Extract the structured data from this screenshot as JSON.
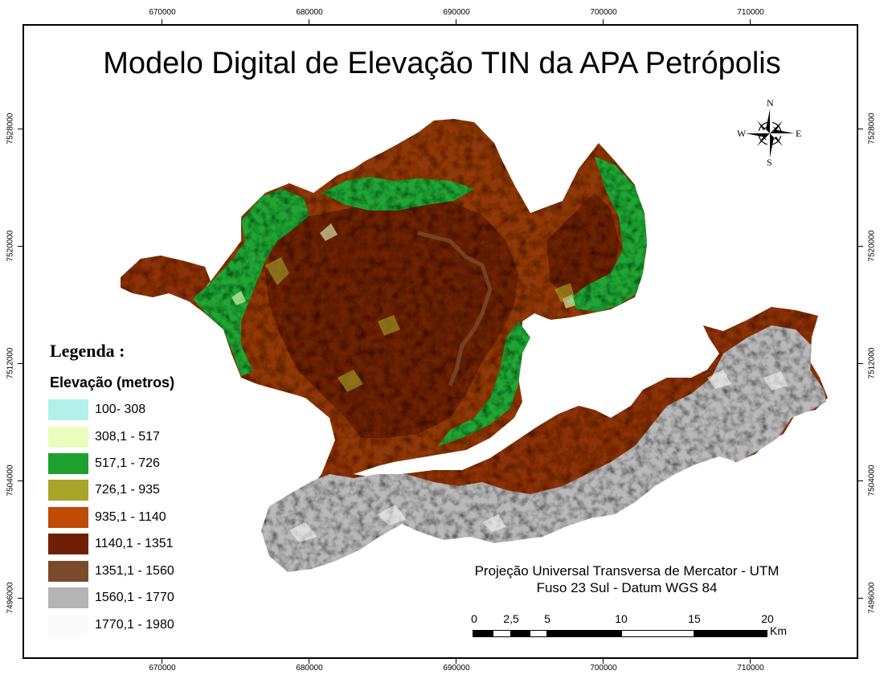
{
  "title": "Modelo Digital de Elevação TIN da APA Petrópolis",
  "grid": {
    "x_ticks": [
      "670000",
      "680000",
      "690000",
      "700000",
      "710000"
    ],
    "y_ticks": [
      "7528000",
      "7520000",
      "7512000",
      "7504000",
      "7496000"
    ]
  },
  "legend": {
    "title": "Legenda :",
    "subtitle": "Elevação (metros)",
    "classes": [
      {
        "label": "100- 308",
        "color": "#b2f0ea"
      },
      {
        "label": "308,1 - 517",
        "color": "#ecfcbc"
      },
      {
        "label": "517,1 - 726",
        "color": "#1fa12f"
      },
      {
        "label": "726,1 - 935",
        "color": "#a8a52a"
      },
      {
        "label": "935,1 - 1140",
        "color": "#c04a06"
      },
      {
        "label": "1140,1 - 1351",
        "color": "#6e1f06"
      },
      {
        "label": "1351,1 - 1560",
        "color": "#7b4a2c"
      },
      {
        "label": "1560,1 - 1770",
        "color": "#b4b4b4"
      },
      {
        "label": "1770,1 - 1980",
        "color": "#fbf9fc"
      }
    ]
  },
  "projection": {
    "line1": "Projeção Universal Transversa de Mercator - UTM",
    "line2": "Fuso 23 Sul - Datum WGS 84"
  },
  "scale_bar": {
    "labels": [
      "0",
      "2,5",
      "5",
      "10",
      "15",
      "20"
    ],
    "unit": "Km"
  },
  "north_arrow": {
    "n": "N",
    "s": "S",
    "e": "E",
    "w": "W"
  }
}
